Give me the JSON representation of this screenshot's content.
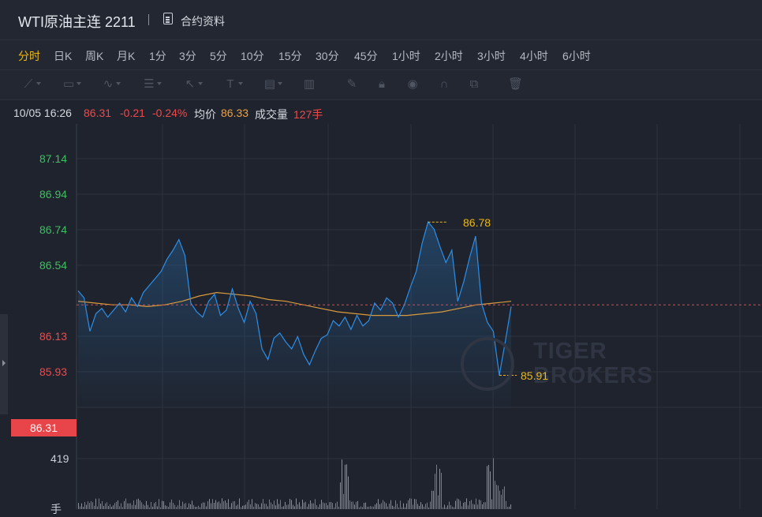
{
  "header": {
    "title": "WTI原油主连 2211",
    "doc_label": "合约资料"
  },
  "periods": [
    "分时",
    "日K",
    "周K",
    "月K",
    "1分",
    "3分",
    "5分",
    "10分",
    "15分",
    "30分",
    "45分",
    "1小时",
    "2小时",
    "3小时",
    "4小时",
    "6小时"
  ],
  "active_period": "分时",
  "toolbar": [
    "trend-line-tool",
    "rect-tool",
    "wave-tool",
    "fib-tool",
    "arrow-tool",
    "text-tool",
    "label-tool",
    "indicator-tool",
    "brush-tool",
    "lock-icon",
    "eye-icon",
    "magnet-icon",
    "layers-icon",
    "trash-icon"
  ],
  "info": {
    "datetime": "10/05 16:26",
    "price": "86.31",
    "change": "-0.21",
    "change_pct": "-0.24%",
    "avg_label": "均价",
    "avg_value": "86.33",
    "volume_label": "成交量",
    "volume_value": "127手"
  },
  "y_axis": {
    "up_labels": [
      "87.14",
      "86.94",
      "86.74",
      "86.54"
    ],
    "current_price": "86.31",
    "down_labels": [
      "86.13",
      "85.93"
    ],
    "volume_label": "419",
    "volume_unit": "手"
  },
  "annotations": {
    "high": "86.78",
    "low": "85.91"
  },
  "watermark": {
    "line1": "TIGER",
    "line2": "BROKERS"
  },
  "colors": {
    "accent": "#f0b90b",
    "up": "#3fbf61",
    "down": "#f0494b",
    "price_line": "#2b8fe8",
    "avg_line": "#d99a3e"
  },
  "chart_data": {
    "type": "line",
    "series": [
      {
        "name": "",
        "values": [
          86.39,
          86.35,
          86.16,
          86.26,
          86.29,
          86.24,
          86.28,
          86.32,
          86.27,
          86.35,
          86.3,
          86.38,
          86.42,
          86.46,
          86.5,
          86.57,
          86.62,
          86.68,
          86.59,
          86.32,
          86.27,
          86.24,
          86.33,
          86.37,
          86.25,
          86.28,
          86.4,
          86.29,
          86.21,
          86.33,
          86.26,
          86.06,
          86.0,
          86.12,
          86.15,
          86.1,
          86.06,
          86.13,
          86.03,
          85.97,
          86.05,
          86.12,
          86.14,
          86.22,
          86.19,
          86.24,
          86.17,
          86.25,
          86.19,
          86.22,
          86.32,
          86.28,
          86.35,
          86.32,
          86.24,
          86.31,
          86.41,
          86.5,
          86.66,
          86.78,
          86.74,
          86.64,
          86.55,
          86.62,
          86.33,
          86.44,
          86.58,
          86.7,
          86.32,
          86.21,
          86.16,
          85.91,
          86.1,
          86.3
        ]
      },
      {
        "name": "均价",
        "values": [
          86.33,
          86.32,
          86.31,
          86.31,
          86.3,
          86.31,
          86.33,
          86.36,
          86.38,
          86.37,
          86.36,
          86.34,
          86.33,
          86.31,
          86.29,
          86.27,
          86.26,
          86.25,
          86.25,
          86.25,
          86.26,
          86.27,
          86.29,
          86.31,
          86.32,
          86.33
        ]
      }
    ],
    "ylim": [
      85.93,
      87.14
    ],
    "volume_ylim": [
      0,
      419
    ]
  }
}
